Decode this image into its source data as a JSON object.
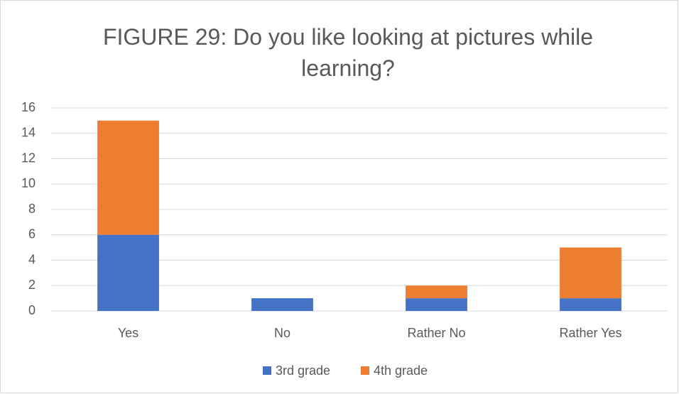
{
  "chart_data": {
    "type": "stacked_bar",
    "title": "FIGURE 29: Do you like looking at pictures while learning?",
    "categories": [
      "Yes",
      "No",
      "Rather No",
      "Rather Yes"
    ],
    "series": [
      {
        "name": "3rd grade",
        "color": "#4472c4",
        "values": [
          6,
          1,
          1,
          1
        ]
      },
      {
        "name": "4th grade",
        "color": "#ed7d31",
        "values": [
          9,
          0,
          1,
          4
        ]
      }
    ],
    "ylim": [
      0,
      16
    ],
    "yticks": [
      0,
      2,
      4,
      6,
      8,
      10,
      12,
      14,
      16
    ],
    "grid": true,
    "legend": "bottom"
  }
}
